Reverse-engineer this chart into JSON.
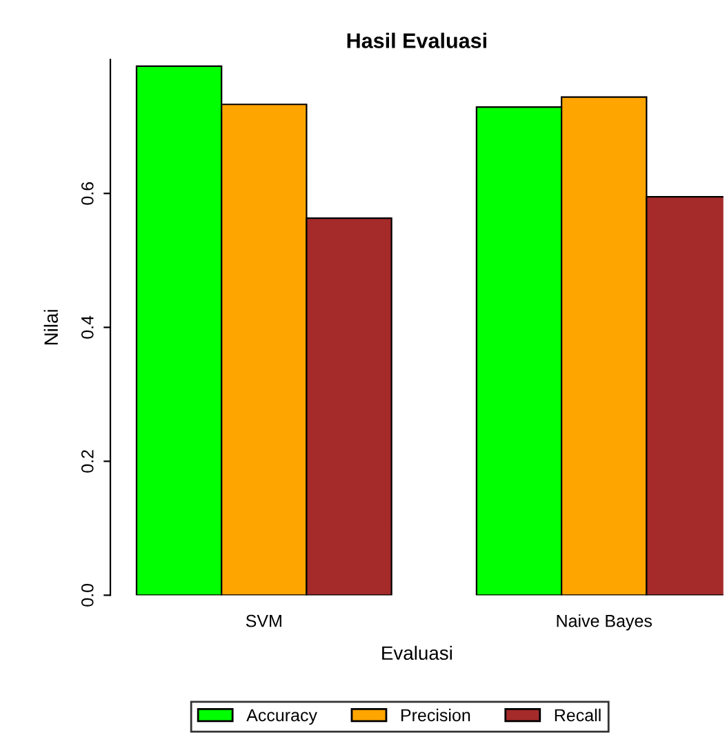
{
  "chart_data": {
    "type": "bar",
    "title": "Hasil Evaluasi",
    "xlabel": "Evaluasi",
    "ylabel": "Nilai",
    "categories": [
      "SVM",
      "Naive Bayes"
    ],
    "series": [
      {
        "name": "Accuracy",
        "color": "#00ff00",
        "values": [
          0.79,
          0.729
        ]
      },
      {
        "name": "Precision",
        "color": "#ffa500",
        "values": [
          0.733,
          0.744
        ]
      },
      {
        "name": "Recall",
        "color": "#a52a2a",
        "values": [
          0.563,
          0.595
        ]
      }
    ],
    "ylim": [
      0,
      0.8
    ],
    "yticks": [
      {
        "value": 0,
        "label": "0.0"
      },
      0.2,
      0.4,
      0.6
    ],
    "grid": false,
    "legend": "bottom"
  }
}
